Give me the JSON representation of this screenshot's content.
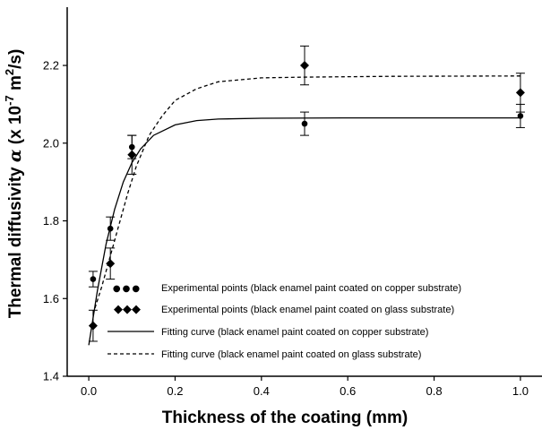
{
  "chart_data": {
    "type": "scatter",
    "xlabel": "Thickness of the coating (mm)",
    "ylabel": {
      "prefix": "Thermal diffusivity ",
      "symbol": "α",
      "unit_open": " (x 10",
      "exponent": "-7",
      "unit_mid": " m",
      "unit_exp": "2",
      "unit_close": "/s)"
    },
    "xlim": [
      -0.05,
      1.05
    ],
    "ylim": [
      1.4,
      2.35
    ],
    "xticks": [
      {
        "value": 0.0,
        "label": "0.0"
      },
      {
        "value": 0.2,
        "label": "0.2"
      },
      {
        "value": 0.4,
        "label": "0.4"
      },
      {
        "value": 0.6,
        "label": "0.6"
      },
      {
        "value": 0.8,
        "label": "0.8"
      },
      {
        "value": 1.0,
        "label": "1.0"
      }
    ],
    "yticks": [
      {
        "value": 1.4,
        "label": "1.4"
      },
      {
        "value": 1.6,
        "label": "1.6"
      },
      {
        "value": 1.8,
        "label": "1.8"
      },
      {
        "value": 2.0,
        "label": "2.0"
      },
      {
        "value": 2.2,
        "label": "2.2"
      }
    ],
    "grid": false,
    "legend_position": "bottom-left",
    "series": [
      {
        "name": "Experimental points (black enamel paint coated on copper substrate)",
        "kind": "points",
        "marker": "circle",
        "legend_symbol": "●●●",
        "color": "#000000",
        "points": [
          {
            "x": 0.01,
            "y": 1.65,
            "err": 0.02
          },
          {
            "x": 0.05,
            "y": 1.78,
            "err": 0.03
          },
          {
            "x": 0.1,
            "y": 1.99,
            "err": 0.03
          },
          {
            "x": 0.5,
            "y": 2.05,
            "err": 0.03
          },
          {
            "x": 1.0,
            "y": 2.07,
            "err": 0.03
          }
        ]
      },
      {
        "name": "Experimental points (black enamel paint coated on glass substrate)",
        "kind": "points",
        "marker": "diamond",
        "legend_symbol": "◆◆◆",
        "color": "#000000",
        "points": [
          {
            "x": 0.01,
            "y": 1.53,
            "err": 0.04
          },
          {
            "x": 0.05,
            "y": 1.69,
            "err": 0.04
          },
          {
            "x": 0.1,
            "y": 1.97,
            "err": 0.05
          },
          {
            "x": 0.5,
            "y": 2.2,
            "err": 0.05
          },
          {
            "x": 1.0,
            "y": 2.13,
            "err": 0.05
          }
        ]
      },
      {
        "name": "Fitting curve (black enamel paint coated on copper substrate)",
        "kind": "line",
        "dash": "solid",
        "color": "#000000",
        "points": [
          {
            "x": 0.0,
            "y": 1.48
          },
          {
            "x": 0.02,
            "y": 1.62
          },
          {
            "x": 0.04,
            "y": 1.74
          },
          {
            "x": 0.06,
            "y": 1.83
          },
          {
            "x": 0.08,
            "y": 1.9
          },
          {
            "x": 0.1,
            "y": 1.95
          },
          {
            "x": 0.12,
            "y": 1.985
          },
          {
            "x": 0.15,
            "y": 2.02
          },
          {
            "x": 0.2,
            "y": 2.047
          },
          {
            "x": 0.25,
            "y": 2.058
          },
          {
            "x": 0.3,
            "y": 2.062
          },
          {
            "x": 0.4,
            "y": 2.064
          },
          {
            "x": 0.6,
            "y": 2.065
          },
          {
            "x": 0.8,
            "y": 2.065
          },
          {
            "x": 1.0,
            "y": 2.065
          }
        ]
      },
      {
        "name": "Fitting curve (black enamel paint coated on glass substrate)",
        "kind": "line",
        "dash": "dashed",
        "color": "#000000",
        "points": [
          {
            "x": 0.01,
            "y": 1.56
          },
          {
            "x": 0.03,
            "y": 1.63
          },
          {
            "x": 0.05,
            "y": 1.71
          },
          {
            "x": 0.07,
            "y": 1.79
          },
          {
            "x": 0.09,
            "y": 1.87
          },
          {
            "x": 0.11,
            "y": 1.94
          },
          {
            "x": 0.14,
            "y": 2.02
          },
          {
            "x": 0.17,
            "y": 2.07
          },
          {
            "x": 0.2,
            "y": 2.11
          },
          {
            "x": 0.25,
            "y": 2.14
          },
          {
            "x": 0.3,
            "y": 2.158
          },
          {
            "x": 0.4,
            "y": 2.168
          },
          {
            "x": 0.5,
            "y": 2.17
          },
          {
            "x": 0.7,
            "y": 2.172
          },
          {
            "x": 1.0,
            "y": 2.173
          }
        ]
      }
    ]
  }
}
